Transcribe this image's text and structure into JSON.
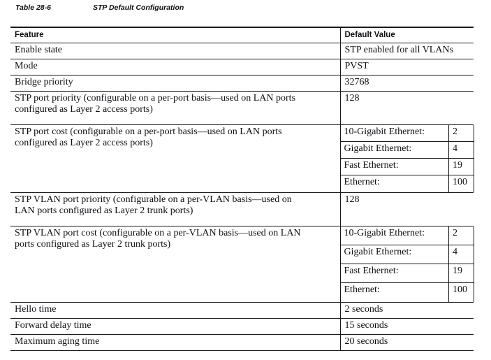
{
  "caption": {
    "number": "Table 28-6",
    "title": "STP Default Configuration"
  },
  "colors": {
    "background": "#ffffff",
    "text": "#0f0f14",
    "border": "#1a1a1a"
  },
  "table": {
    "headers": {
      "feature": "Feature",
      "value": "Default Value"
    },
    "rows": [
      {
        "feature": "Enable state",
        "value": "STP enabled for all VLANs"
      },
      {
        "feature": "Mode",
        "value": "PVST"
      },
      {
        "feature": "Bridge priority",
        "value": "32768"
      },
      {
        "feature": "STP port priority (configurable on a per-port basis—used on LAN ports\nconfigured as Layer 2 access ports)",
        "value": "128"
      },
      {
        "feature": "STP port cost (configurable on a per-port basis—used on LAN ports\nconfigured as Layer 2 access ports)",
        "subrows": [
          {
            "label": "10-Gigabit Ethernet:",
            "value": "2"
          },
          {
            "label": "Gigabit Ethernet:",
            "value": "4"
          },
          {
            "label": "Fast Ethernet:",
            "value": "19"
          },
          {
            "label": "Ethernet:",
            "value": "100"
          }
        ]
      },
      {
        "feature": "STP VLAN port priority (configurable on a per-VLAN basis—used on\nLAN ports configured as Layer 2 trunk ports)",
        "value": "128"
      },
      {
        "feature": "STP VLAN port cost (configurable on a per-VLAN basis—used on LAN\nports configured as Layer 2 trunk ports)",
        "subrows": [
          {
            "label": "10-Gigabit Ethernet:",
            "value": "2"
          },
          {
            "label": "Gigabit Ethernet:",
            "value": "4"
          },
          {
            "label": "Fast Ethernet:",
            "value": "19"
          },
          {
            "label": "Ethernet:",
            "value": "100"
          }
        ]
      },
      {
        "feature": "Hello time",
        "value": "2 seconds"
      },
      {
        "feature": "Forward delay time",
        "value": "15 seconds"
      },
      {
        "feature": "Maximum aging time",
        "value": "20 seconds"
      }
    ]
  }
}
